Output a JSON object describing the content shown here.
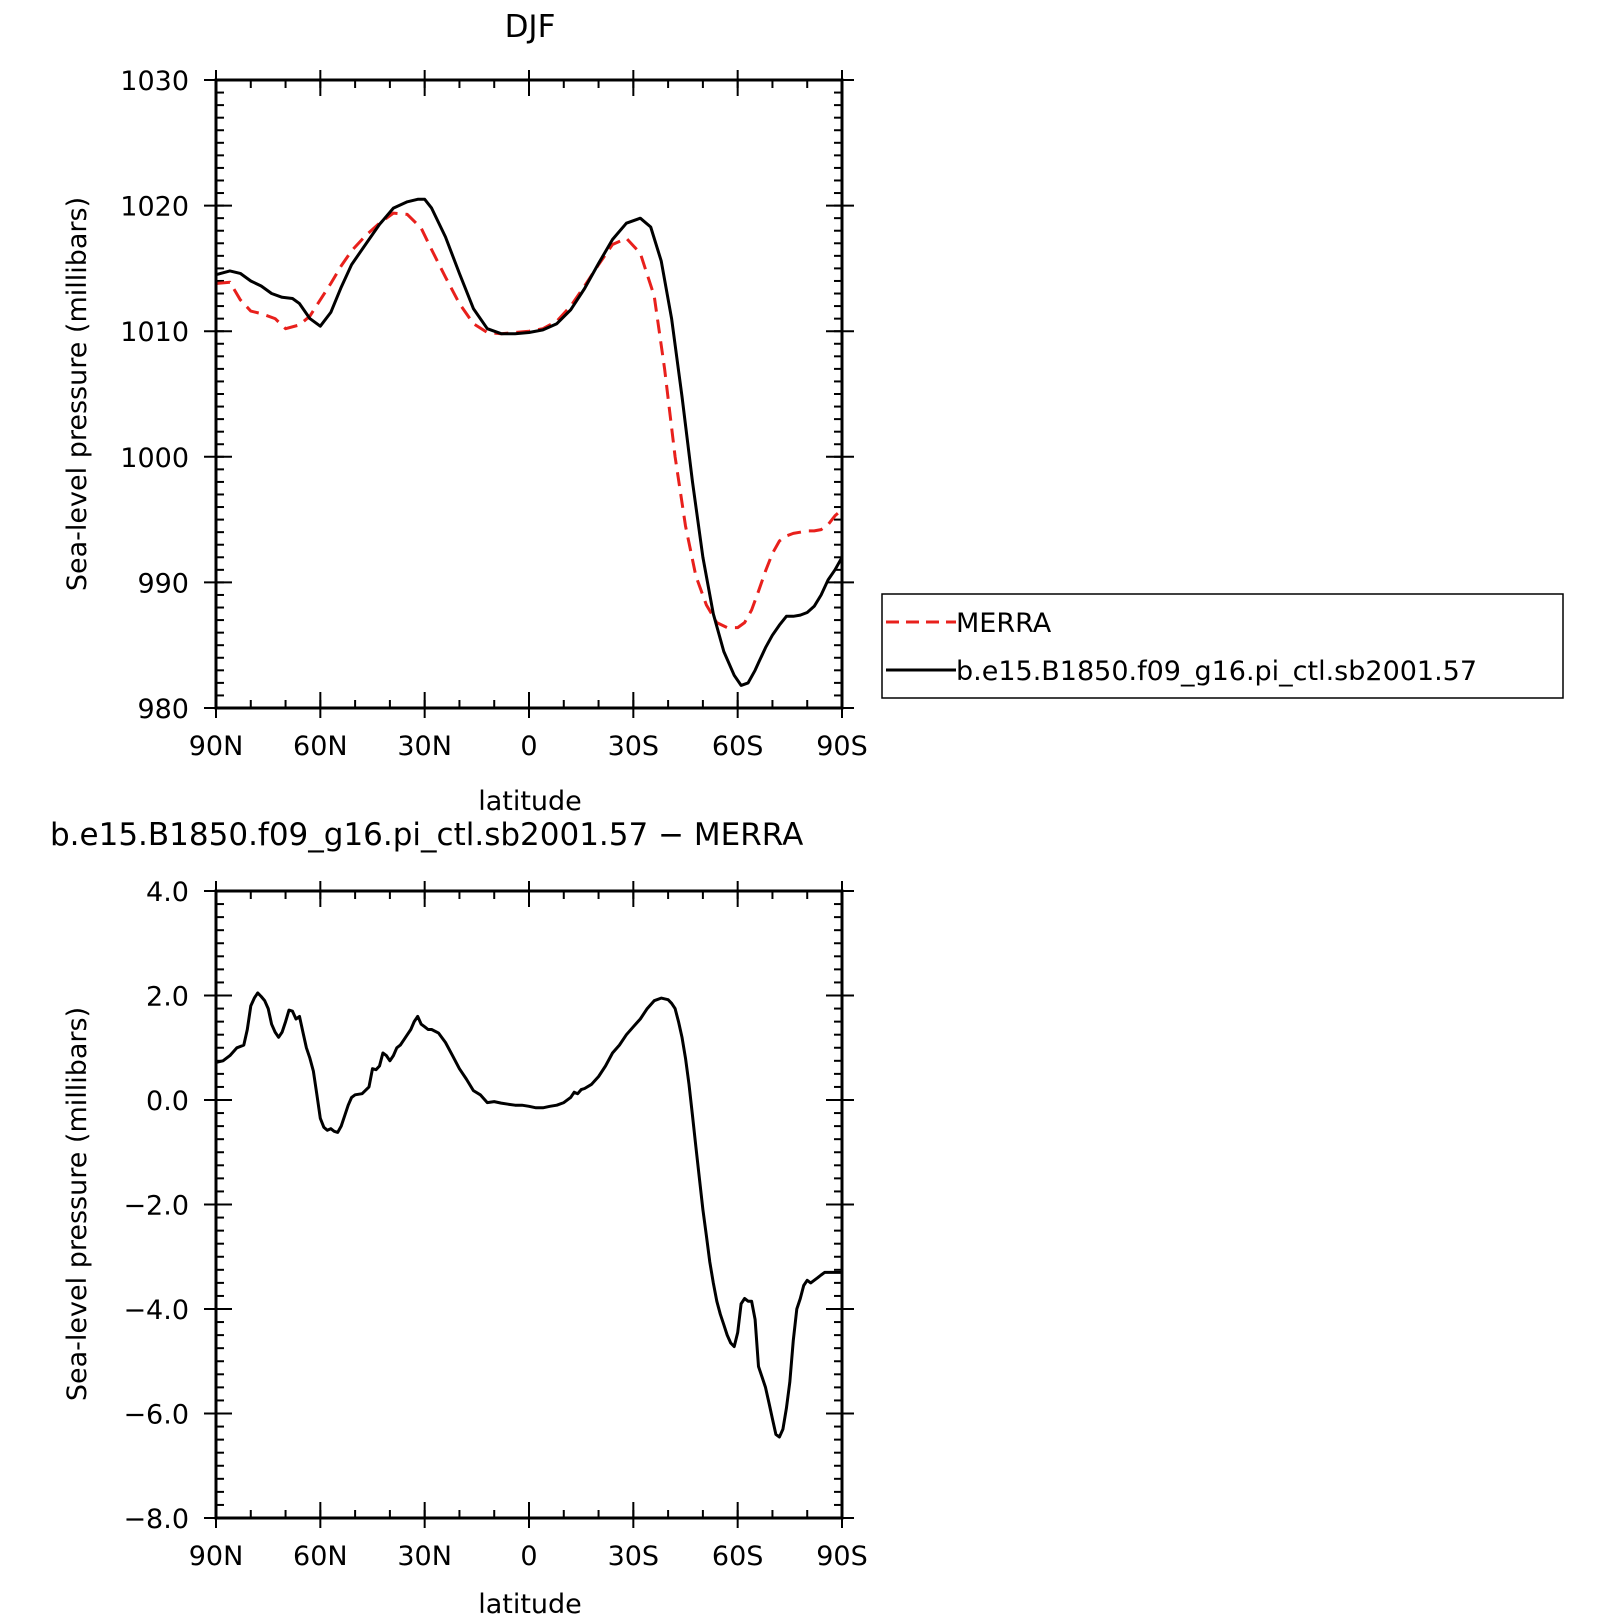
{
  "chart_data": [
    {
      "type": "line",
      "title": "DJF",
      "xlabel": "latitude",
      "ylabel": "Sea-level pressure (millibars)",
      "xlim": [
        90,
        -90
      ],
      "ylim": [
        980,
        1030
      ],
      "x_ticks": [
        {
          "value": 90,
          "label": "90N"
        },
        {
          "value": 60,
          "label": "60N"
        },
        {
          "value": 30,
          "label": "30N"
        },
        {
          "value": 0,
          "label": "0"
        },
        {
          "value": -30,
          "label": "30S"
        },
        {
          "value": -60,
          "label": "60S"
        },
        {
          "value": -90,
          "label": "90S"
        }
      ],
      "y_ticks": [
        {
          "value": 980,
          "label": "980"
        },
        {
          "value": 990,
          "label": "990"
        },
        {
          "value": 1000,
          "label": "1000"
        },
        {
          "value": 1010,
          "label": "1010"
        },
        {
          "value": 1020,
          "label": "1020"
        },
        {
          "value": 1030,
          "label": "1030"
        }
      ],
      "grid": false,
      "legend": "right",
      "series": [
        {
          "name": "MERRA",
          "color": "#e8201c",
          "dash": true,
          "x": [
            90,
            86,
            83,
            80,
            77,
            73,
            70,
            66,
            63,
            60,
            57,
            54,
            51,
            47,
            43,
            39,
            35,
            31,
            28,
            24,
            20,
            16,
            12,
            8,
            4,
            0,
            -4,
            -8,
            -12,
            -16,
            -20,
            -24,
            -28,
            -32,
            -36,
            -39,
            -42,
            -45,
            -48,
            -51,
            -54,
            -57,
            -60,
            -62,
            -64,
            -66,
            -68,
            -70,
            -72,
            -74,
            -76,
            -78,
            -80,
            -82,
            -84,
            -86,
            -88,
            -90
          ],
          "y": [
            1013.8,
            1013.9,
            1012.5,
            1011.6,
            1011.4,
            1011.0,
            1010.2,
            1010.5,
            1011.2,
            1012.5,
            1013.8,
            1015.2,
            1016.4,
            1017.6,
            1018.6,
            1019.4,
            1019.3,
            1018.2,
            1016.5,
            1014.3,
            1012.2,
            1010.6,
            1009.9,
            1009.8,
            1009.9,
            1010.0,
            1010.2,
            1010.8,
            1012.0,
            1013.6,
            1015.3,
            1016.9,
            1017.4,
            1016.2,
            1012.8,
            1007.0,
            1000.0,
            994.5,
            990.5,
            988.2,
            986.8,
            986.4,
            986.4,
            986.8,
            987.8,
            989.3,
            990.9,
            992.3,
            993.3,
            993.7,
            993.9,
            994.0,
            994.1,
            994.1,
            994.2,
            994.6,
            995.3,
            995.8
          ]
        },
        {
          "name": "b.e15.B1850.f09_g16.pi_ctl.sb2001.57",
          "color": "#000000",
          "dash": false,
          "x": [
            90,
            86,
            83,
            80,
            77,
            74,
            71,
            68,
            66,
            63,
            60,
            57,
            54,
            51,
            47,
            43,
            39,
            35,
            32,
            30,
            28,
            24,
            20,
            16,
            12,
            8,
            4,
            0,
            -4,
            -8,
            -12,
            -16,
            -20,
            -24,
            -28,
            -32,
            -35,
            -38,
            -41,
            -44,
            -47,
            -50,
            -53,
            -56,
            -59,
            -61,
            -63,
            -65,
            -66,
            -68,
            -70,
            -72,
            -74,
            -76,
            -78,
            -80,
            -82,
            -84,
            -86,
            -88,
            -90
          ],
          "y": [
            1014.5,
            1014.8,
            1014.6,
            1014.0,
            1013.6,
            1013.0,
            1012.7,
            1012.6,
            1012.2,
            1011.0,
            1010.4,
            1011.5,
            1013.5,
            1015.3,
            1016.9,
            1018.5,
            1019.8,
            1020.3,
            1020.5,
            1020.5,
            1019.8,
            1017.5,
            1014.6,
            1011.8,
            1010.2,
            1009.8,
            1009.8,
            1009.9,
            1010.1,
            1010.6,
            1011.7,
            1013.4,
            1015.4,
            1017.3,
            1018.6,
            1019.0,
            1018.3,
            1015.6,
            1011.0,
            1004.8,
            998.0,
            992.0,
            987.5,
            984.5,
            982.6,
            981.8,
            982.0,
            983.0,
            983.6,
            984.8,
            985.8,
            986.6,
            987.3,
            987.3,
            987.4,
            987.6,
            988.1,
            989.0,
            990.2,
            991.0,
            992.0
          ]
        }
      ]
    },
    {
      "type": "line",
      "title": "b.e15.B1850.f09_g16.pi_ctl.sb2001.57 − MERRA",
      "xlabel": "latitude",
      "ylabel": "Sea-level pressure (millibars)",
      "xlim": [
        90,
        -90
      ],
      "ylim": [
        -8,
        4
      ],
      "x_ticks": [
        {
          "value": 90,
          "label": "90N"
        },
        {
          "value": 60,
          "label": "60N"
        },
        {
          "value": 30,
          "label": "30N"
        },
        {
          "value": 0,
          "label": "0"
        },
        {
          "value": -30,
          "label": "30S"
        },
        {
          "value": -60,
          "label": "60S"
        },
        {
          "value": -90,
          "label": "90S"
        }
      ],
      "y_ticks": [
        {
          "value": -8,
          "label": "−8.0"
        },
        {
          "value": -6,
          "label": "−6.0"
        },
        {
          "value": -4,
          "label": "−4.0"
        },
        {
          "value": -2,
          "label": "−2.0"
        },
        {
          "value": 0,
          "label": "0.0"
        },
        {
          "value": 2,
          "label": "2.0"
        },
        {
          "value": 4,
          "label": "4.0"
        }
      ],
      "grid": false,
      "series": [
        {
          "color": "#000000",
          "dash": false,
          "x": [
            90,
            88,
            86,
            84,
            82,
            81,
            80,
            79,
            78,
            77,
            76,
            75,
            74,
            73,
            72,
            71,
            70,
            69,
            68,
            67,
            66,
            65,
            64,
            63,
            62,
            61,
            60,
            59,
            58,
            57,
            56,
            55,
            54,
            53,
            52,
            51,
            50,
            48,
            46,
            45,
            44,
            43,
            42,
            41,
            40,
            39,
            38,
            37,
            36,
            35,
            34,
            33,
            32,
            31,
            30,
            29,
            28,
            26,
            24,
            22,
            20,
            18,
            16,
            14,
            12,
            10,
            8,
            6,
            4,
            2,
            0,
            -2,
            -4,
            -6,
            -8,
            -10,
            -12,
            -13,
            -14,
            -15,
            -16,
            -18,
            -20,
            -22,
            -24,
            -26,
            -28,
            -30,
            -32,
            -34,
            -36,
            -38,
            -40,
            -41,
            -42,
            -43,
            -44,
            -45,
            -46,
            -47,
            -48,
            -49,
            -50,
            -51,
            -52,
            -53,
            -54,
            -55,
            -56,
            -57,
            -58,
            -59,
            -60,
            -61,
            -62,
            -63,
            -64,
            -65,
            -66,
            -67,
            -68,
            -69,
            -70,
            -71,
            -72,
            -73,
            -74,
            -75,
            -76,
            -77,
            -78,
            -79,
            -80,
            -81,
            -82,
            -83,
            -84,
            -85,
            -86,
            -87,
            -88,
            -89,
            -90
          ],
          "y": [
            0.72,
            0.75,
            0.85,
            1.0,
            1.05,
            1.35,
            1.8,
            1.95,
            2.05,
            1.98,
            1.9,
            1.75,
            1.45,
            1.3,
            1.2,
            1.3,
            1.5,
            1.72,
            1.7,
            1.55,
            1.6,
            1.3,
            1.0,
            0.8,
            0.55,
            0.1,
            -0.35,
            -0.52,
            -0.58,
            -0.55,
            -0.6,
            -0.62,
            -0.5,
            -0.3,
            -0.1,
            0.05,
            0.1,
            0.12,
            0.25,
            0.6,
            0.58,
            0.65,
            0.9,
            0.85,
            0.75,
            0.85,
            1.0,
            1.05,
            1.15,
            1.25,
            1.35,
            1.5,
            1.6,
            1.45,
            1.4,
            1.35,
            1.35,
            1.28,
            1.1,
            0.85,
            0.6,
            0.4,
            0.18,
            0.1,
            -0.05,
            -0.03,
            -0.06,
            -0.08,
            -0.1,
            -0.1,
            -0.12,
            -0.15,
            -0.15,
            -0.12,
            -0.1,
            -0.05,
            0.05,
            0.15,
            0.12,
            0.2,
            0.22,
            0.3,
            0.45,
            0.65,
            0.9,
            1.05,
            1.25,
            1.4,
            1.55,
            1.75,
            1.9,
            1.95,
            1.92,
            1.85,
            1.75,
            1.5,
            1.2,
            0.8,
            0.3,
            -0.3,
            -0.9,
            -1.5,
            -2.1,
            -2.6,
            -3.1,
            -3.5,
            -3.85,
            -4.1,
            -4.3,
            -4.5,
            -4.65,
            -4.72,
            -4.45,
            -3.9,
            -3.8,
            -3.85,
            -3.85,
            -4.2,
            -5.1,
            -5.3,
            -5.5,
            -5.8,
            -6.1,
            -6.4,
            -6.45,
            -6.3,
            -5.9,
            -5.4,
            -4.6,
            -4.0,
            -3.8,
            -3.55,
            -3.45,
            -3.5,
            -3.45,
            -3.4,
            -3.35,
            -3.3,
            -3.3,
            -3.3,
            -3.3,
            -3.3,
            -3.3
          ]
        }
      ]
    }
  ]
}
